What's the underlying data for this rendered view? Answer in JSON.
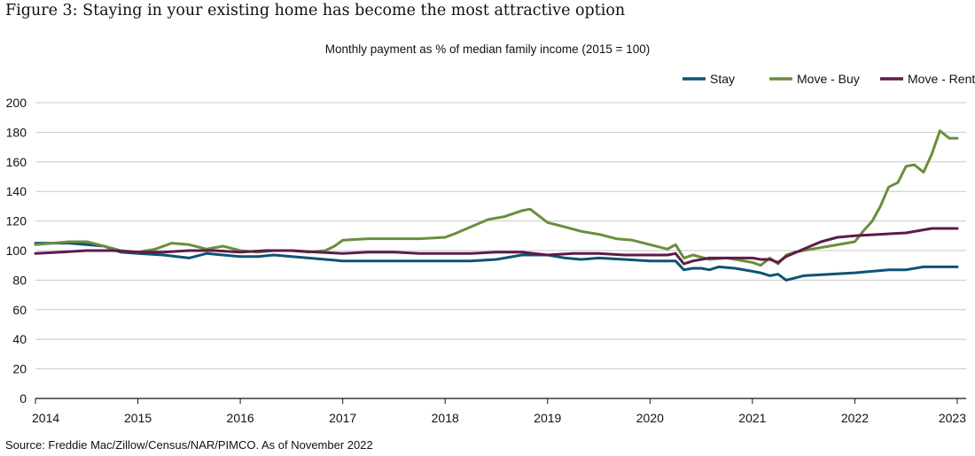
{
  "title": "Figure 3: Staying in your existing home has become the most attractive option",
  "subtitle": "Monthly payment as % of median family income (2015 = 100)",
  "source": "Source: Freddie Mac/Zillow/Census/NAR/PIMCO. As of November 2022",
  "chart_data": {
    "type": "line",
    "ylim": [
      0,
      200
    ],
    "yticks": [
      0,
      20,
      40,
      60,
      80,
      100,
      120,
      140,
      160,
      180,
      200
    ],
    "xlim": [
      2014,
      2023
    ],
    "xticks": [
      "2014",
      "2015",
      "2016",
      "2017",
      "2018",
      "2019",
      "2020",
      "2021",
      "2022",
      "2023"
    ],
    "grid": "horizontal",
    "legend_position": "top-right",
    "series": [
      {
        "name": "Stay",
        "color": "#0f5374",
        "x": [
          2014.0,
          2014.17,
          2014.33,
          2014.5,
          2014.67,
          2014.83,
          2015.0,
          2015.25,
          2015.5,
          2015.67,
          2015.83,
          2016.0,
          2016.17,
          2016.33,
          2016.5,
          2016.67,
          2016.83,
          2017.0,
          2017.25,
          2017.5,
          2017.75,
          2018.0,
          2018.25,
          2018.5,
          2018.75,
          2019.0,
          2019.17,
          2019.33,
          2019.5,
          2019.75,
          2020.0,
          2020.17,
          2020.25,
          2020.33,
          2020.42,
          2020.5,
          2020.58,
          2020.67,
          2020.83,
          2021.0,
          2021.08,
          2021.17,
          2021.25,
          2021.33,
          2021.5,
          2021.75,
          2022.0,
          2022.17,
          2022.33,
          2022.5,
          2022.67,
          2022.83,
          2023.0
        ],
        "values": [
          105,
          105,
          105,
          104,
          103,
          99,
          98,
          97,
          95,
          98,
          97,
          96,
          96,
          97,
          96,
          95,
          94,
          93,
          93,
          93,
          93,
          93,
          93,
          94,
          97,
          97,
          95,
          94,
          95,
          94,
          93,
          93,
          93,
          87,
          88,
          88,
          87,
          89,
          88,
          86,
          85,
          83,
          84,
          80,
          83,
          84,
          85,
          86,
          87,
          87,
          89,
          89,
          89
        ]
      },
      {
        "name": "Move - Buy",
        "color": "#6a8e3d",
        "x": [
          2014.0,
          2014.17,
          2014.33,
          2014.5,
          2014.67,
          2014.83,
          2015.0,
          2015.17,
          2015.33,
          2015.5,
          2015.67,
          2015.83,
          2016.0,
          2016.17,
          2016.33,
          2016.5,
          2016.67,
          2016.83,
          2016.92,
          2017.0,
          2017.25,
          2017.5,
          2017.75,
          2018.0,
          2018.08,
          2018.25,
          2018.42,
          2018.58,
          2018.75,
          2018.83,
          2019.0,
          2019.17,
          2019.33,
          2019.5,
          2019.67,
          2019.83,
          2020.0,
          2020.17,
          2020.25,
          2020.33,
          2020.42,
          2020.58,
          2020.75,
          2021.0,
          2021.08,
          2021.17,
          2021.25,
          2021.33,
          2021.42,
          2021.58,
          2021.75,
          2022.0,
          2022.08,
          2022.17,
          2022.25,
          2022.33,
          2022.42,
          2022.5,
          2022.58,
          2022.67,
          2022.75,
          2022.83,
          2022.92,
          2023.0
        ],
        "values": [
          104,
          105,
          106,
          106,
          103,
          100,
          99,
          101,
          105,
          104,
          101,
          103,
          100,
          99,
          100,
          100,
          99,
          100,
          103,
          107,
          108,
          108,
          108,
          109,
          111,
          116,
          121,
          123,
          127,
          128,
          119,
          116,
          113,
          111,
          108,
          107,
          104,
          101,
          104,
          95,
          97,
          94,
          95,
          92,
          90,
          95,
          91,
          97,
          99,
          101,
          103,
          106,
          113,
          120,
          130,
          143,
          146,
          157,
          158,
          153,
          165,
          181,
          176,
          176
        ]
      },
      {
        "name": "Move - Rent",
        "color": "#5e1a4b",
        "x": [
          2014.0,
          2014.25,
          2014.5,
          2014.75,
          2015.0,
          2015.25,
          2015.5,
          2015.75,
          2016.0,
          2016.25,
          2016.5,
          2016.75,
          2017.0,
          2017.25,
          2017.5,
          2017.75,
          2018.0,
          2018.25,
          2018.5,
          2018.75,
          2019.0,
          2019.25,
          2019.5,
          2019.75,
          2020.0,
          2020.17,
          2020.25,
          2020.33,
          2020.42,
          2020.58,
          2020.75,
          2021.0,
          2021.08,
          2021.17,
          2021.25,
          2021.33,
          2021.5,
          2021.67,
          2021.83,
          2022.0,
          2022.25,
          2022.5,
          2022.75,
          2023.0
        ],
        "values": [
          98,
          99,
          100,
          100,
          99,
          99,
          100,
          100,
          99,
          100,
          100,
          99,
          98,
          99,
          99,
          98,
          98,
          98,
          99,
          99,
          97,
          98,
          98,
          97,
          97,
          97,
          98,
          91,
          93,
          95,
          95,
          95,
          94,
          94,
          92,
          96,
          101,
          106,
          109,
          110,
          111,
          112,
          115,
          115
        ]
      }
    ]
  }
}
